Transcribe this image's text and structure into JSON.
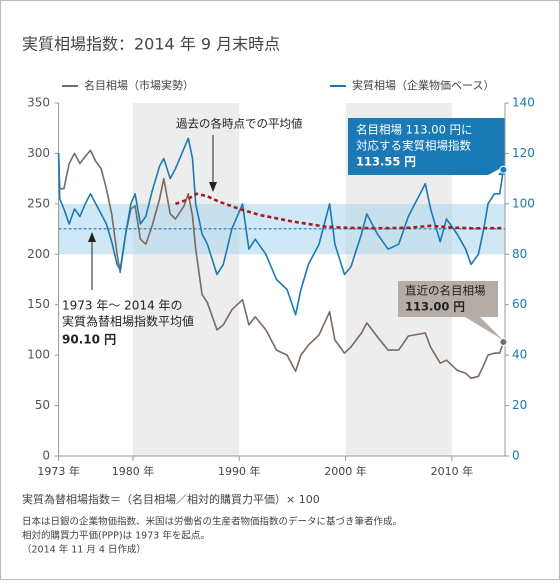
{
  "chart_data": {
    "type": "line",
    "title": "実質相場指数：2014 年 9 月末時点",
    "xlim": [
      1973,
      2015
    ],
    "xticks": [
      {
        "value": 1973,
        "label": "1973 年"
      },
      {
        "value": 1980,
        "label": "1980 年"
      },
      {
        "value": 1990,
        "label": "1990 年"
      },
      {
        "value": 2000,
        "label": "2000 年"
      },
      {
        "value": 2010,
        "label": "2010 年"
      }
    ],
    "ylim": [
      0,
      350
    ],
    "yticks": [
      0,
      50,
      100,
      150,
      200,
      250,
      300,
      350
    ],
    "y2lim": [
      0,
      140
    ],
    "y2ticks": [
      0,
      20,
      40,
      60,
      80,
      100,
      120,
      140
    ],
    "shaded_x": [
      [
        1980,
        1990
      ],
      [
        2000,
        2010
      ]
    ],
    "y2band": [
      80,
      100
    ],
    "average": {
      "value": 90.1,
      "label": "90.10 円",
      "axis": "y2",
      "color": "#1a7ab5"
    },
    "series": [
      {
        "name": "名目相場（市場実勢）",
        "color": "#7a6a5f",
        "axis": "y",
        "x": [
          1973.0,
          1973.1,
          1973.5,
          1974.0,
          1974.5,
          1975.0,
          1975.5,
          1976.0,
          1976.5,
          1977.0,
          1977.5,
          1978.0,
          1978.5,
          1978.8,
          1979.3,
          1979.8,
          1980.2,
          1980.7,
          1981.2,
          1981.8,
          1982.5,
          1982.9,
          1983.5,
          1984.0,
          1984.8,
          1985.2,
          1985.6,
          1985.9,
          1986.5,
          1987.0,
          1987.9,
          1988.5,
          1989.3,
          1990.3,
          1990.9,
          1991.5,
          1992.5,
          1993.5,
          1994.5,
          1995.3,
          1995.8,
          1996.5,
          1997.5,
          1998.5,
          1999.0,
          1999.9,
          2000.5,
          2001.5,
          2002.0,
          2003.0,
          2004.0,
          2005.0,
          2005.9,
          2007.5,
          2008.0,
          2008.9,
          2009.5,
          2010.5,
          2011.3,
          2011.8,
          2012.5,
          2013.0,
          2013.4,
          2014.0,
          2014.5,
          2014.85
        ],
        "values": [
          300,
          265,
          265,
          290,
          300,
          290,
          297,
          303,
          292,
          285,
          265,
          240,
          200,
          182,
          220,
          245,
          248,
          215,
          210,
          228,
          255,
          275,
          240,
          235,
          248,
          260,
          238,
          205,
          160,
          152,
          125,
          130,
          145,
          155,
          130,
          138,
          125,
          105,
          100,
          84,
          100,
          110,
          120,
          143,
          115,
          102,
          108,
          122,
          132,
          118,
          105,
          105,
          119,
          122,
          108,
          92,
          95,
          85,
          82,
          77,
          79,
          90,
          100,
          102,
          102,
          113
        ]
      },
      {
        "name": "実質相場（企業物価ベース）",
        "color": "#1a7ab5",
        "axis": "y2",
        "x": [
          1973.0,
          1973.1,
          1973.5,
          1974.0,
          1974.5,
          1975.0,
          1975.5,
          1976.0,
          1976.5,
          1977.0,
          1977.5,
          1978.0,
          1978.5,
          1978.8,
          1979.3,
          1979.8,
          1980.2,
          1980.7,
          1981.2,
          1981.8,
          1982.5,
          1982.9,
          1983.5,
          1984.0,
          1984.8,
          1985.2,
          1985.6,
          1985.9,
          1986.5,
          1987.0,
          1987.9,
          1988.5,
          1989.3,
          1990.3,
          1990.9,
          1991.5,
          1992.5,
          1993.5,
          1994.5,
          1995.3,
          1995.8,
          1996.5,
          1997.5,
          1998.5,
          1999.0,
          1999.9,
          2000.5,
          2001.5,
          2002.0,
          2003.0,
          2004.0,
          2005.0,
          2005.9,
          2007.5,
          2008.0,
          2008.9,
          2009.5,
          2010.5,
          2011.3,
          2011.8,
          2012.5,
          2013.0,
          2013.4,
          2014.0,
          2014.5,
          2014.85
        ],
        "values": [
          120,
          102,
          98,
          92,
          98,
          95,
          100,
          104,
          100,
          96,
          92,
          85,
          76,
          74,
          88,
          100,
          104,
          92,
          95,
          105,
          115,
          118,
          110,
          114,
          122,
          126,
          118,
          100,
          88,
          84,
          72,
          76,
          90,
          100,
          82,
          86,
          80,
          70,
          66,
          56,
          66,
          76,
          84,
          100,
          84,
          72,
          75,
          88,
          96,
          88,
          82,
          84,
          95,
          108,
          98,
          85,
          94,
          88,
          82,
          76,
          80,
          90,
          100,
          104,
          104,
          113.55
        ]
      },
      {
        "color": "#a31d1d",
        "axis": "y2",
        "dashed": true,
        "x": [
          1984.0,
          1985.0,
          1986.0,
          1987.0,
          1988.0,
          1990.0,
          1992.0,
          1995.0,
          1998.0,
          2000.0,
          2003.0,
          2006.0,
          2008.0,
          2010.0,
          2012.0,
          2014.85
        ],
        "values": [
          100,
          101.5,
          104,
          103,
          101,
          98,
          95.5,
          93,
          91,
          90.5,
          90.3,
          90.5,
          91.3,
          90.6,
          90.3,
          90.4
        ]
      }
    ],
    "annotations": {
      "moving_average": "過去の各時点での平均値",
      "average_lines": [
        "1973 年～ 2014 年の",
        "実質為替相場指数平均値"
      ],
      "callout_real": [
        "名目相場 113.00 円に",
        "対応する実質相場指数",
        "113.55 円"
      ],
      "callout_nominal": [
        "直近の名目相場",
        "113.00 円"
      ]
    },
    "notes": [
      "実質為替相場指数＝（名目相場／相対的購買力平価）× 100",
      "日本は日銀の企業物価指数、米国は労働省の生産者物価指数のデータに基づき筆者作成。",
      "相対的購買力平価(PPP)は 1973 年を起点。",
      "（2014 年 11 月 4 日作成）"
    ]
  }
}
